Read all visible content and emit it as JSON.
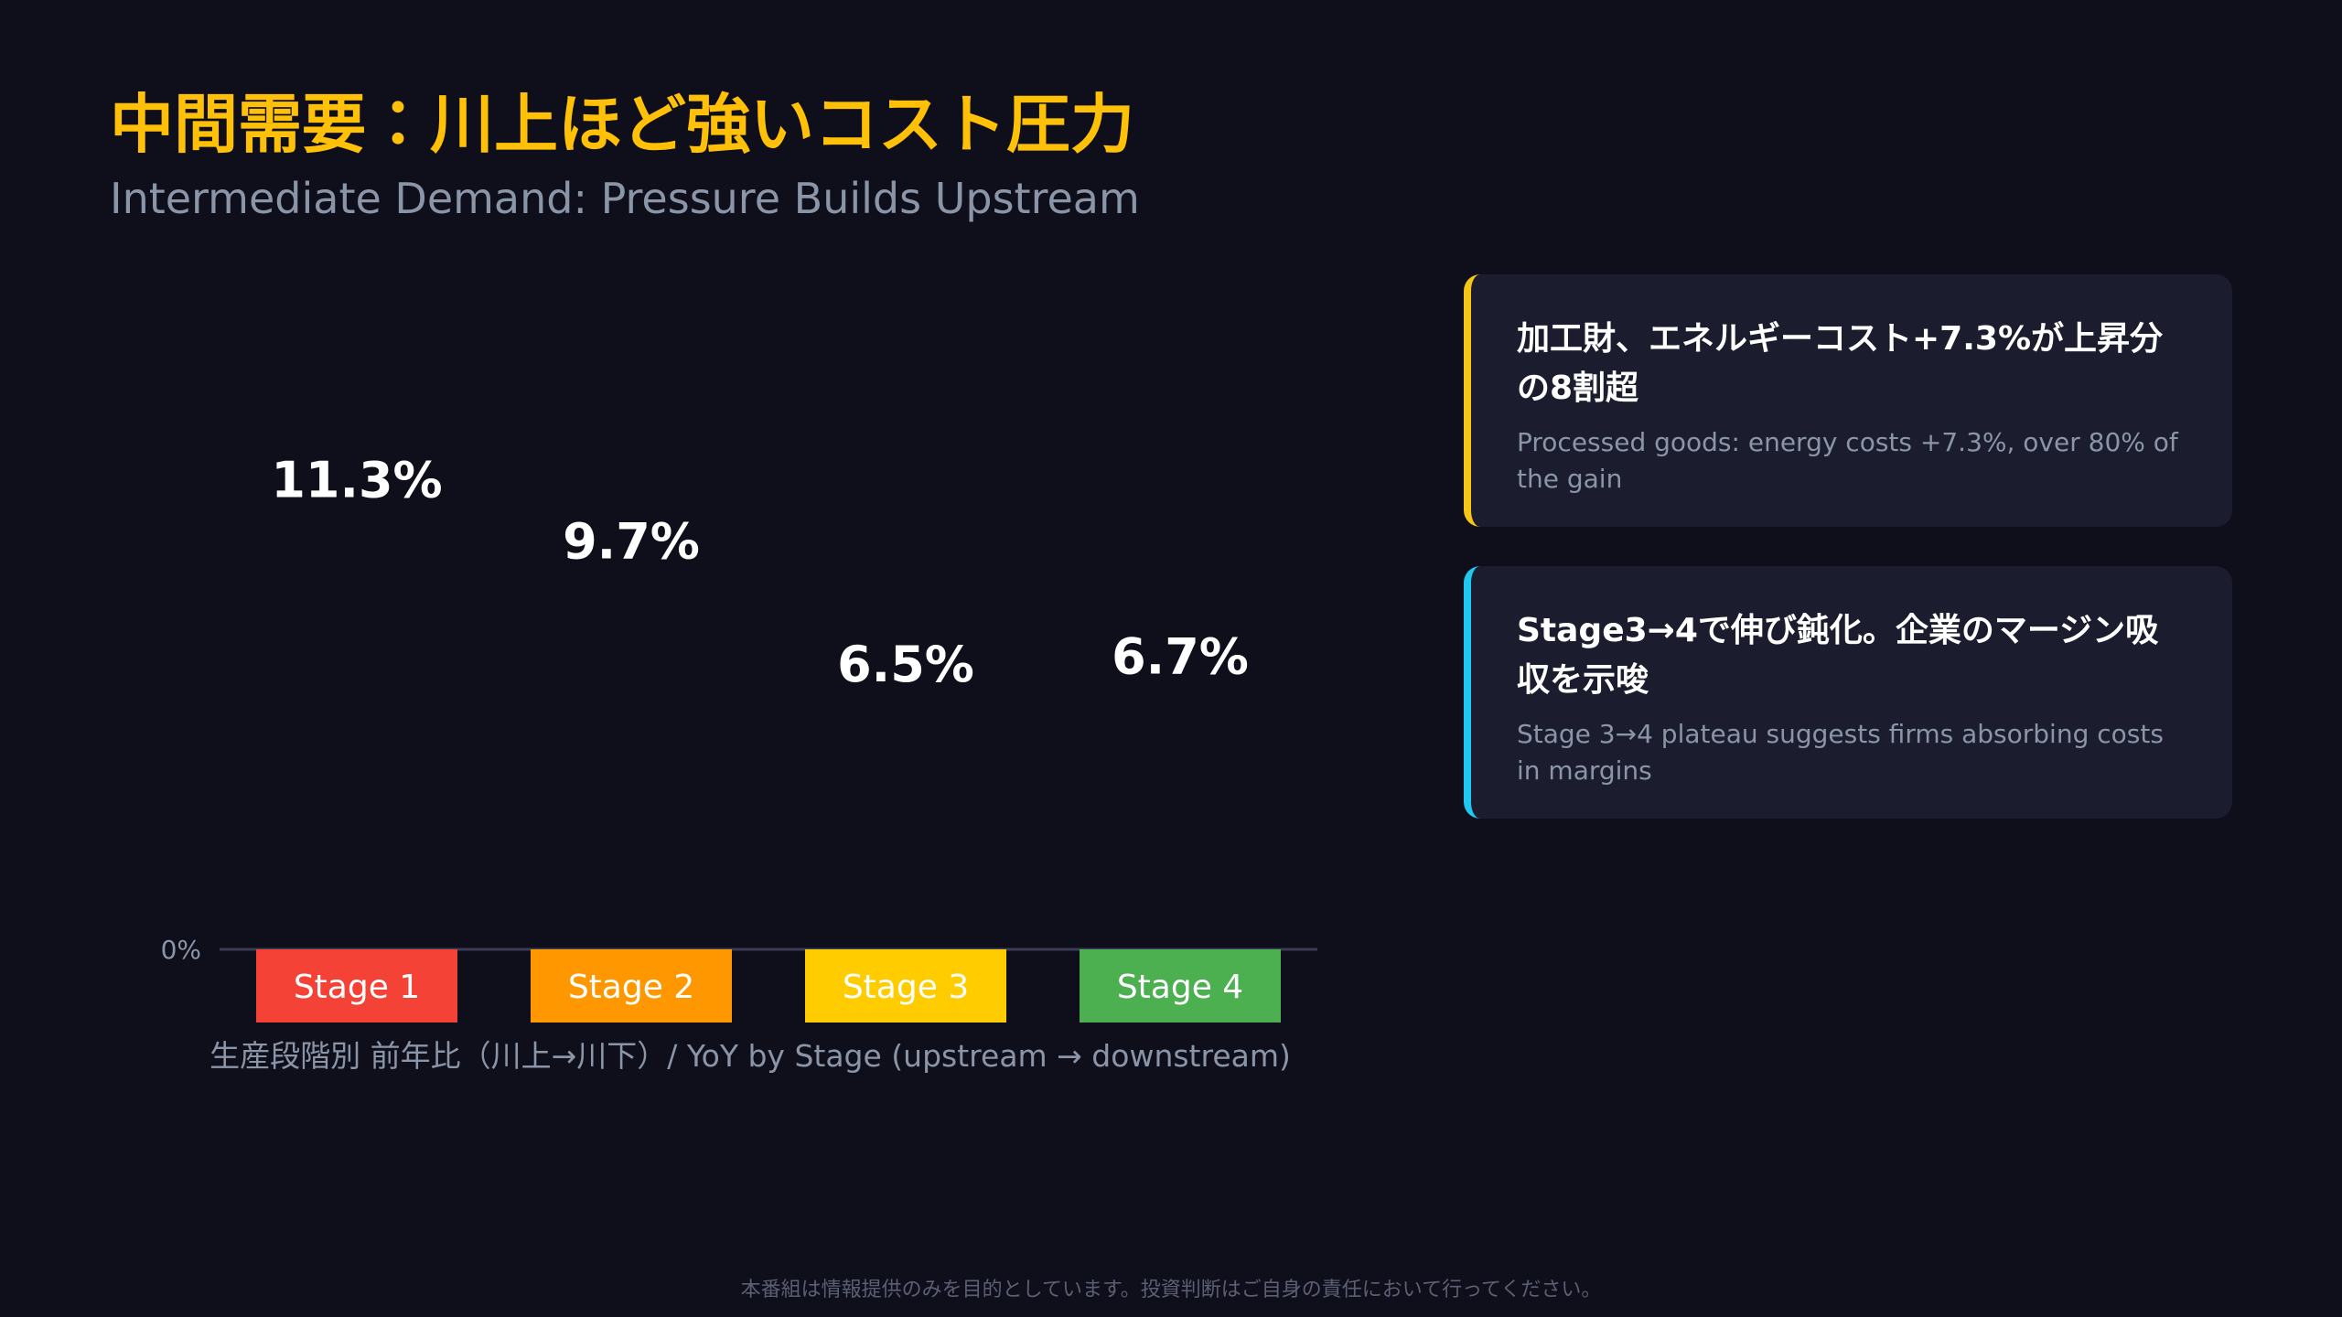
{
  "title": "中間需要：川上ほど強いコスト圧力",
  "subtitle": "Intermediate Demand: Pressure Builds Upstream",
  "chart_data": {
    "type": "bar",
    "categories": [
      "Stage 1",
      "Stage 2",
      "Stage 3",
      "Stage 4"
    ],
    "values": [
      11.3,
      9.7,
      6.5,
      6.7
    ],
    "value_labels": [
      "11.3%",
      "9.7%",
      "6.5%",
      "6.7%"
    ],
    "colors": [
      "#f44336",
      "#ff9800",
      "#ffcc00",
      "#4caf50"
    ],
    "ylim": [
      0,
      17.5
    ],
    "yticks": [
      {
        "value": 0,
        "label": "0%"
      }
    ],
    "x_label": "生産段階別 前年比（川上→川下）/ YoY by Stage (upstream → downstream)"
  },
  "cards": [
    {
      "title": "加工財、エネルギーコスト+7.3%が上昇分の8割超",
      "text": "Processed goods: energy costs +7.3%, over 80% of the gain",
      "color": "#f5c518"
    },
    {
      "title": "Stage3→4で伸び鈍化。企業のマージン吸収を示唆",
      "text": "Stage 3→4 plateau suggests firms absorbing costs in margins",
      "color": "#1ec8f0"
    }
  ],
  "disclaimer": "本番組は情報提供のみを目的としています。投資判断はご自身の責任において行ってください。"
}
